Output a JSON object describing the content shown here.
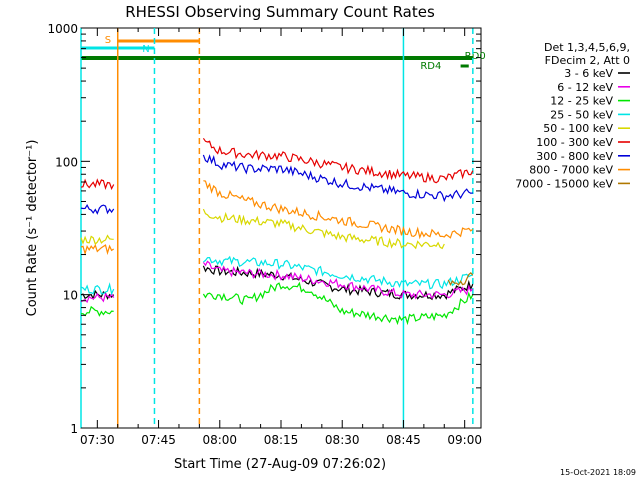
{
  "chart_data": {
    "type": "line",
    "title": "RHESSI Observing Summary Count Rates",
    "xlabel": "Start Time (27-Aug-09 07:26:02)",
    "ylabel": "Count Rate (s⁻¹ detector⁻¹)",
    "yscale": "log",
    "ylim": [
      1,
      1000
    ],
    "xlim": [
      "07:26",
      "09:04"
    ],
    "x_ticks": [
      "07:30",
      "07:45",
      "08:00",
      "08:15",
      "08:30",
      "08:45",
      "09:00"
    ],
    "y_ticks": [
      "1",
      "10",
      "100",
      "1000"
    ],
    "footer": "15-Oct-2021 18:09",
    "legend": {
      "position": "right",
      "header": [
        "Det 1,3,4,5,6,9,",
        "FDecim 2, Att 0"
      ],
      "entries": [
        {
          "label": "3 - 6 keV",
          "color": "#000000"
        },
        {
          "label": "6 - 12 keV",
          "color": "#e800e8"
        },
        {
          "label": "12 - 25 keV",
          "color": "#00e600"
        },
        {
          "label": "25 - 50 keV",
          "color": "#00e5e5"
        },
        {
          "label": "50 - 100 keV",
          "color": "#d8d800"
        },
        {
          "label": "100 - 300 keV",
          "color": "#e60000"
        },
        {
          "label": "300 - 800 keV",
          "color": "#0000d8"
        },
        {
          "label": "800 - 7000 keV",
          "color": "#ff8c00"
        },
        {
          "label": "7000 - 15000 keV",
          "color": "#b07800"
        }
      ]
    },
    "flags": [
      {
        "label": "S",
        "start": "07:35",
        "end": "07:55",
        "color": "#ff8c00"
      },
      {
        "label": "N",
        "start": "07:26",
        "end": "07:44",
        "color": "#00e5e5"
      },
      {
        "label": "RD0",
        "start": "07:26",
        "end": "09:02",
        "color": "#007a00"
      },
      {
        "label": "RD4",
        "start": "08:59",
        "end": "09:01",
        "color": "#007a00"
      }
    ],
    "event_lines": [
      {
        "time": "07:26",
        "color": "#00e5e5",
        "style": "solid"
      },
      {
        "time": "07:35",
        "color": "#ff8c00",
        "style": "solid"
      },
      {
        "time": "07:44",
        "color": "#00e5e5",
        "style": "dashed"
      },
      {
        "time": "07:55",
        "color": "#ff8c00",
        "style": "dashed"
      },
      {
        "time": "08:45",
        "color": "#00e5e5",
        "style": "solid"
      },
      {
        "time": "09:02",
        "color": "#00e5e5",
        "style": "dashed"
      }
    ],
    "series": [
      {
        "name": "3 - 6 keV",
        "color": "#000000",
        "segments": [
          {
            "x": [
              "07:26",
              "07:30",
              "07:34"
            ],
            "y": [
              10,
              10,
              10
            ]
          },
          {
            "x": [
              "07:56",
              "08:00",
              "08:15",
              "08:30",
              "08:45",
              "08:55",
              "09:02"
            ],
            "y": [
              16,
              15,
              14,
              11,
              10,
              10,
              12
            ]
          }
        ]
      },
      {
        "name": "6 - 12 keV",
        "color": "#e800e8",
        "segments": [
          {
            "x": [
              "07:26",
              "07:30",
              "07:34"
            ],
            "y": [
              9.5,
              9.5,
              9.5
            ]
          },
          {
            "x": [
              "07:56",
              "08:00",
              "08:15",
              "08:30",
              "08:45",
              "08:55",
              "09:02"
            ],
            "y": [
              17,
              15,
              14,
              12,
              10,
              10,
              11
            ]
          }
        ]
      },
      {
        "name": "12 - 25 keV",
        "color": "#00e600",
        "segments": [
          {
            "x": [
              "07:26",
              "07:30",
              "07:34"
            ],
            "y": [
              7.5,
              7.5,
              7.5
            ]
          },
          {
            "x": [
              "07:56",
              "08:00",
              "08:07",
              "08:15",
              "08:22",
              "08:30",
              "08:45",
              "08:55",
              "09:02"
            ],
            "y": [
              10,
              10,
              9,
              12,
              11,
              7.5,
              6.5,
              7,
              10
            ]
          }
        ]
      },
      {
        "name": "25 - 50 keV",
        "color": "#00e5e5",
        "segments": [
          {
            "x": [
              "07:26",
              "07:30",
              "07:34"
            ],
            "y": [
              11,
              11,
              11
            ]
          },
          {
            "x": [
              "07:56",
              "08:00",
              "08:15",
              "08:30",
              "08:45",
              "08:55",
              "09:02"
            ],
            "y": [
              19,
              18,
              17,
              14,
              12,
              12,
              14
            ]
          }
        ]
      },
      {
        "name": "50 - 100 keV",
        "color": "#d8d800",
        "segments": [
          {
            "x": [
              "07:26",
              "07:30",
              "07:34"
            ],
            "y": [
              26,
              26,
              26
            ]
          },
          {
            "x": [
              "07:56",
              "08:00",
              "08:15",
              "08:30",
              "08:45",
              "08:55"
            ],
            "y": [
              42,
              38,
              34,
              27,
              24,
              24
            ]
          }
        ]
      },
      {
        "name": "100 - 300 keV",
        "color": "#e60000",
        "segments": [
          {
            "x": [
              "07:26",
              "07:30",
              "07:34"
            ],
            "y": [
              67,
              67,
              67
            ]
          },
          {
            "x": [
              "07:56",
              "08:00",
              "08:07",
              "08:15",
              "08:30",
              "08:45",
              "08:55",
              "09:02"
            ],
            "y": [
              140,
              120,
              112,
              110,
              90,
              78,
              74,
              85
            ]
          }
        ]
      },
      {
        "name": "300 - 800 keV",
        "color": "#0000d8",
        "segments": [
          {
            "x": [
              "07:26",
              "07:30",
              "07:34"
            ],
            "y": [
              44,
              44,
              44
            ]
          },
          {
            "x": [
              "07:56",
              "08:00",
              "08:07",
              "08:15",
              "08:30",
              "08:45",
              "08:55",
              "09:02"
            ],
            "y": [
              110,
              95,
              88,
              88,
              68,
              58,
              55,
              58
            ]
          }
        ]
      },
      {
        "name": "800 - 7000 keV",
        "color": "#ff8c00",
        "segments": [
          {
            "x": [
              "07:26",
              "07:30",
              "07:34"
            ],
            "y": [
              22,
              22,
              22
            ]
          },
          {
            "x": [
              "07:56",
              "08:00",
              "08:07",
              "08:15",
              "08:30",
              "08:45",
              "08:55",
              "09:02"
            ],
            "y": [
              70,
              58,
              50,
              44,
              36,
              30,
              28,
              31
            ]
          }
        ]
      },
      {
        "name": "7000 - 15000 keV",
        "color": "#b07800",
        "segments": [
          {
            "x": [
              "08:56",
              "09:00",
              "09:02"
            ],
            "y": [
              12,
              13,
              14
            ]
          }
        ]
      }
    ]
  }
}
